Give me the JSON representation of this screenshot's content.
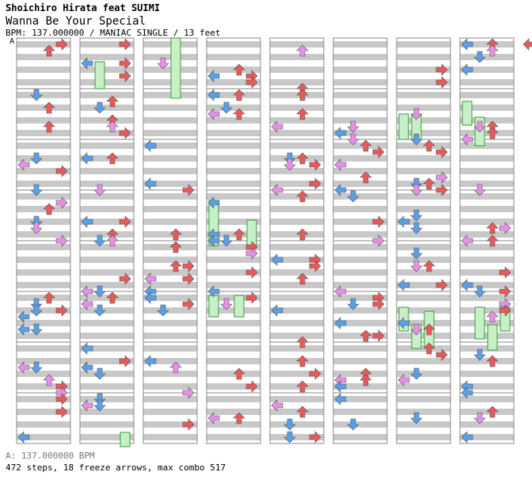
{
  "header": {
    "artist": "Shoichiro Hirata feat SUIMI",
    "title": "Wanna Be Your Special",
    "info": "BPM: 137.000000 / MANIAC SINGLE / 13 feet"
  },
  "marker": "A",
  "footer": {
    "bpm_line": "A: 137.000000 BPM",
    "stats_line": "472 steps, 18 freeze arrows, max combo 517"
  },
  "colors": {
    "left_arrow": "#5aa0e8",
    "down_arrow": "#5aa0e8",
    "up_arrow": "#e85a5a",
    "right_arrow": "#e85a5a",
    "quarter_note_pink": "#e890e8",
    "freeze": "#c8f0c8",
    "stripe": "#c8c8c8"
  }
}
